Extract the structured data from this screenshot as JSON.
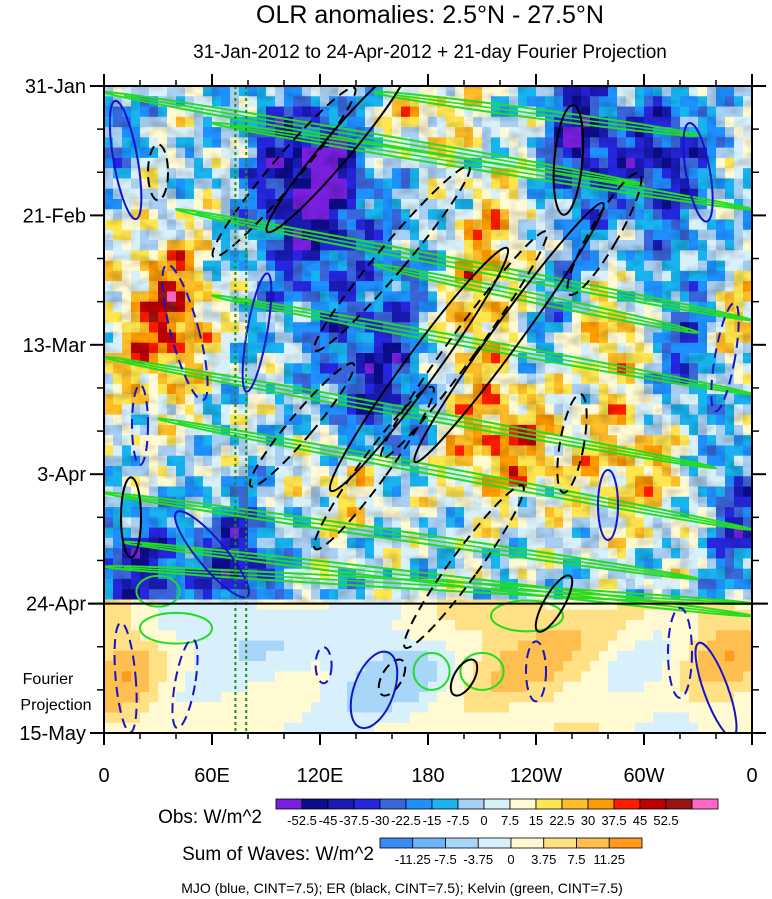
{
  "chart_data": {
    "type": "heatmap",
    "title": "OLR anomalies: 2.5°N - 27.5°N",
    "subtitle": "31-Jan-2012 to 24-Apr-2012 + 21-day Fourier Projection",
    "x_ticks": [
      "0",
      "60E",
      "120E",
      "180",
      "120W",
      "60W",
      "0"
    ],
    "x_tick_lon": [
      0,
      60,
      120,
      180,
      240,
      300,
      360
    ],
    "y_ticks": [
      "31-Jan",
      "21-Feb",
      "13-Mar",
      "3-Apr",
      "24-Apr",
      "15-May"
    ],
    "y_tick_day": [
      0,
      21,
      42,
      63,
      84,
      105
    ],
    "projection_label_line1": "Fourier",
    "projection_label_line2": "Projection",
    "projection_start_day": 84,
    "reference_lons": [
      73,
      79
    ],
    "obs_colorbar": {
      "label": "Obs: W/m^2",
      "levels": [
        "-52.5",
        "-45",
        "-37.5",
        "-30",
        "-22.5",
        "-15",
        "-7.5",
        "0",
        "7.5",
        "15",
        "22.5",
        "30",
        "37.5",
        "45",
        "52.5"
      ],
      "colors": [
        "#7a1fe0",
        "#0c0c8c",
        "#1a1ab4",
        "#2626e0",
        "#3a66dc",
        "#1e90ff",
        "#18b4f0",
        "#a8d0f4",
        "#d8f0fa",
        "#fffad2",
        "#ffe650",
        "#ffbe28",
        "#ff9a00",
        "#ff1a00",
        "#c00000",
        "#9a1414",
        "#ff66c8"
      ]
    },
    "wave_colorbar": {
      "label": "Sum of Waves: W/m^2",
      "levels": [
        "-11.25",
        "-7.5",
        "-3.75",
        "0",
        "3.75",
        "7.5",
        "11.25"
      ],
      "colors": [
        "#3a8cf4",
        "#6eb4f8",
        "#a8d6f8",
        "#d8f0fc",
        "#fffad2",
        "#ffe084",
        "#ffbe50",
        "#ff9a1a"
      ]
    },
    "contour_legend": "MJO (blue, CINT=7.5); ER (black, CINT=7.5); Kelvin (green, CINT=7.5)",
    "series": [
      {
        "name": "MJO",
        "color": "#1414c8",
        "cint": 7.5
      },
      {
        "name": "ER",
        "color": "#000000",
        "cint": 7.5
      },
      {
        "name": "Kelvin",
        "color": "#22dd22",
        "cint": 7.5
      }
    ],
    "anomaly_features": [
      {
        "lon": 40,
        "day": 36,
        "value": 35,
        "slon": 14,
        "sday": 8
      },
      {
        "lon": 20,
        "day": 42,
        "value": 20,
        "slon": 18,
        "sday": 10
      },
      {
        "lon": 125,
        "day": 14,
        "value": -48,
        "slon": 14,
        "sday": 7
      },
      {
        "lon": 110,
        "day": 24,
        "value": -30,
        "slon": 20,
        "sday": 10
      },
      {
        "lon": 150,
        "day": 50,
        "value": -35,
        "slon": 22,
        "sday": 12
      },
      {
        "lon": 175,
        "day": 35,
        "value": -25,
        "slon": 20,
        "sday": 12
      },
      {
        "lon": 195,
        "day": 40,
        "value": 30,
        "slon": 22,
        "sday": 8
      },
      {
        "lon": 220,
        "day": 26,
        "value": 30,
        "slon": 25,
        "sday": 8
      },
      {
        "lon": 250,
        "day": 32,
        "value": -25,
        "slon": 20,
        "sday": 10
      },
      {
        "lon": 265,
        "day": 8,
        "value": -45,
        "slon": 14,
        "sday": 8
      },
      {
        "lon": 310,
        "day": 12,
        "value": -40,
        "slon": 18,
        "sday": 8
      },
      {
        "lon": 280,
        "day": 40,
        "value": 35,
        "slon": 15,
        "sday": 6
      },
      {
        "lon": 325,
        "day": 45,
        "value": -28,
        "slon": 20,
        "sday": 12
      },
      {
        "lon": 20,
        "day": 78,
        "value": -40,
        "slon": 20,
        "sday": 6
      },
      {
        "lon": 75,
        "day": 78,
        "value": -40,
        "slon": 15,
        "sday": 8
      },
      {
        "lon": 140,
        "day": 64,
        "value": 30,
        "slon": 20,
        "sday": 6
      },
      {
        "lon": 220,
        "day": 58,
        "value": 35,
        "slon": 25,
        "sday": 7
      },
      {
        "lon": 300,
        "day": 60,
        "value": 30,
        "slon": 25,
        "sday": 8
      },
      {
        "lon": 350,
        "day": 70,
        "value": -35,
        "slon": 10,
        "sday": 8
      },
      {
        "lon": 350,
        "day": 40,
        "value": 30,
        "slon": 10,
        "sday": 8
      },
      {
        "lon": 95,
        "day": 10,
        "value": -25,
        "slon": 12,
        "sday": 8
      },
      {
        "lon": 5,
        "day": 5,
        "value": -20,
        "slon": 10,
        "sday": 6
      },
      {
        "lon": 180,
        "day": 5,
        "value": 20,
        "slon": 20,
        "sday": 5
      }
    ],
    "projection_features": [
      {
        "lon": 160,
        "day": 95,
        "value": -8,
        "slon": 28,
        "sday": 6
      },
      {
        "lon": 235,
        "day": 92,
        "value": 7,
        "slon": 35,
        "sday": 8
      },
      {
        "lon": 10,
        "day": 95,
        "value": 8,
        "slon": 15,
        "sday": 8
      },
      {
        "lon": 345,
        "day": 92,
        "value": 8,
        "slon": 18,
        "sday": 7
      },
      {
        "lon": 70,
        "day": 88,
        "value": -6,
        "slon": 25,
        "sday": 5
      },
      {
        "lon": 300,
        "day": 98,
        "value": -4,
        "slon": 20,
        "sday": 7
      }
    ],
    "mjo_contours": [
      {
        "lon": 12,
        "day": 12,
        "rx": 12,
        "ry": 60,
        "rot": -10,
        "dashed": false
      },
      {
        "lon": 45,
        "day": 40,
        "rx": 14,
        "ry": 70,
        "rot": -15,
        "dashed": true
      },
      {
        "lon": 60,
        "day": 76,
        "rx": 14,
        "ry": 55,
        "rot": -40,
        "dashed": false
      },
      {
        "lon": 85,
        "day": 40,
        "rx": 10,
        "ry": 60,
        "rot": 10,
        "dashed": false
      },
      {
        "lon": 45,
        "day": 97,
        "rx": 10,
        "ry": 45,
        "rot": 10,
        "dashed": true
      },
      {
        "lon": 12,
        "day": 96,
        "rx": 10,
        "ry": 55,
        "rot": -5,
        "dashed": true
      },
      {
        "lon": 150,
        "day": 98,
        "rx": 20,
        "ry": 40,
        "rot": 20,
        "dashed": false
      },
      {
        "lon": 330,
        "day": 14,
        "rx": 12,
        "ry": 50,
        "rot": -10,
        "dashed": false
      },
      {
        "lon": 345,
        "day": 44,
        "rx": 10,
        "ry": 55,
        "rot": 10,
        "dashed": true
      },
      {
        "lon": 280,
        "day": 68,
        "rx": 10,
        "ry": 35,
        "rot": 0,
        "dashed": false
      },
      {
        "lon": 340,
        "day": 98,
        "rx": 12,
        "ry": 50,
        "rot": -20,
        "dashed": false
      },
      {
        "lon": 320,
        "day": 92,
        "rx": 12,
        "ry": 45,
        "rot": 0,
        "dashed": true
      },
      {
        "lon": 20,
        "day": 55,
        "rx": 8,
        "ry": 40,
        "rot": 0,
        "dashed": true
      },
      {
        "lon": 240,
        "day": 95,
        "rx": 10,
        "ry": 30,
        "rot": 0,
        "dashed": true
      },
      {
        "lon": 122,
        "day": 94,
        "rx": 8,
        "ry": 18,
        "rot": 0,
        "dashed": true
      }
    ],
    "er_contours": [
      {
        "lon": 130,
        "day": 10,
        "rx": 14,
        "ry": 110,
        "rot": 40,
        "dashed": false
      },
      {
        "lon": 100,
        "day": 14,
        "rx": 14,
        "ry": 110,
        "rot": 40,
        "dashed": true
      },
      {
        "lon": 160,
        "day": 28,
        "rx": 14,
        "ry": 120,
        "rot": 40,
        "dashed": true
      },
      {
        "lon": 175,
        "day": 46,
        "rx": 16,
        "ry": 150,
        "rot": 36,
        "dashed": false
      },
      {
        "lon": 200,
        "day": 42,
        "rx": 14,
        "ry": 140,
        "rot": 36,
        "dashed": true
      },
      {
        "lon": 225,
        "day": 40,
        "rx": 14,
        "ry": 160,
        "rot": 36,
        "dashed": false
      },
      {
        "lon": 258,
        "day": 12,
        "rx": 14,
        "ry": 55,
        "rot": 5,
        "dashed": false
      },
      {
        "lon": 278,
        "day": 24,
        "rx": 14,
        "ry": 70,
        "rot": 30,
        "dashed": true
      },
      {
        "lon": 30,
        "day": 14,
        "rx": 10,
        "ry": 28,
        "rot": 0,
        "dashed": true
      },
      {
        "lon": 15,
        "day": 70,
        "rx": 10,
        "ry": 40,
        "rot": 0,
        "dashed": false
      },
      {
        "lon": 200,
        "day": 78,
        "rx": 14,
        "ry": 100,
        "rot": 36,
        "dashed": true
      },
      {
        "lon": 250,
        "day": 84,
        "rx": 10,
        "ry": 32,
        "rot": 30,
        "dashed": false
      },
      {
        "lon": 200,
        "day": 96,
        "rx": 10,
        "ry": 20,
        "rot": 30,
        "dashed": false
      },
      {
        "lon": 160,
        "day": 96,
        "rx": 10,
        "ry": 20,
        "rot": 30,
        "dashed": true
      },
      {
        "lon": 150,
        "day": 62,
        "rx": 14,
        "ry": 100,
        "rot": 36,
        "dashed": true
      },
      {
        "lon": 110,
        "day": 55,
        "rx": 12,
        "ry": 80,
        "rot": 40,
        "dashed": true
      },
      {
        "lon": 260,
        "day": 58,
        "rx": 12,
        "ry": 50,
        "rot": 10,
        "dashed": true
      }
    ],
    "kelvin_bands": [
      {
        "x0": 0,
        "d0": 1,
        "x1": 300,
        "d1": 16
      },
      {
        "x0": 60,
        "d0": 6,
        "x1": 360,
        "d1": 20
      },
      {
        "x0": 150,
        "d0": 1,
        "x1": 330,
        "d1": 8
      },
      {
        "x0": 40,
        "d0": 20,
        "x1": 360,
        "d1": 38
      },
      {
        "x0": 60,
        "d0": 34,
        "x1": 360,
        "d1": 50
      },
      {
        "x0": 0,
        "d0": 44,
        "x1": 340,
        "d1": 62
      },
      {
        "x0": 30,
        "d0": 54,
        "x1": 360,
        "d1": 72
      },
      {
        "x0": 0,
        "d0": 66,
        "x1": 330,
        "d1": 80
      },
      {
        "x0": 10,
        "d0": 74,
        "x1": 360,
        "d1": 86
      },
      {
        "x0": 0,
        "d0": 78,
        "x1": 360,
        "d1": 84
      },
      {
        "x0": 150,
        "d0": 29,
        "x1": 330,
        "d1": 40
      }
    ],
    "kelvin_blobs": [
      {
        "lon": 182,
        "day": 95,
        "rx": 10,
        "ry": 3
      },
      {
        "lon": 210,
        "day": 95,
        "rx": 12,
        "ry": 3
      },
      {
        "lon": 40,
        "day": 88,
        "rx": 20,
        "ry": 2.5
      },
      {
        "lon": 30,
        "day": 82,
        "rx": 12,
        "ry": 2.5
      },
      {
        "lon": 235,
        "day": 86,
        "rx": 20,
        "ry": 2.5
      }
    ]
  }
}
